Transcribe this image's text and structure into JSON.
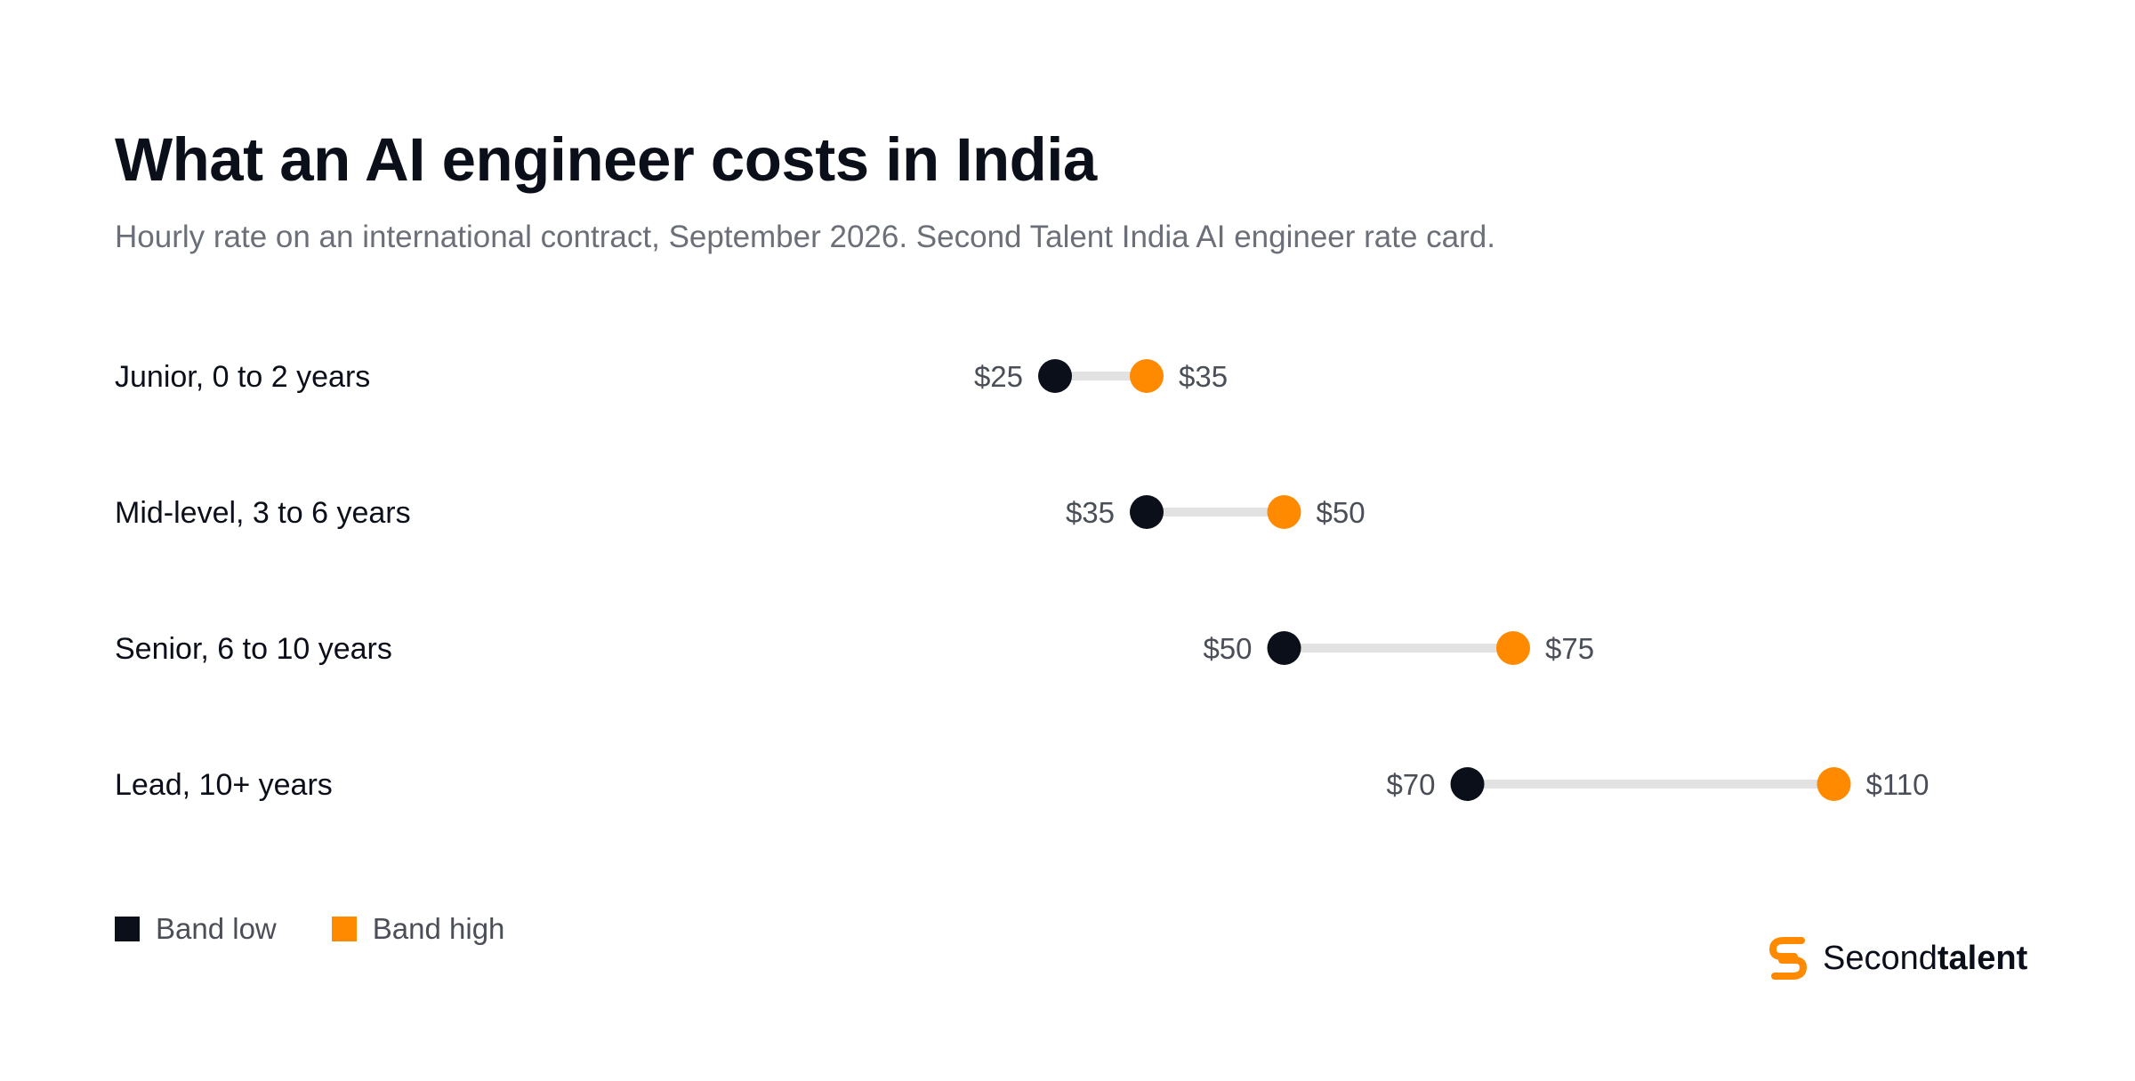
{
  "title": "What an AI engineer costs in India",
  "subtitle": "Hourly rate on an international contract, September 2026. Second Talent India AI engineer rate card.",
  "colors": {
    "low": "#0b0f1a",
    "high": "#ff8a00",
    "connector": "#e2e2e2"
  },
  "chart_data": {
    "type": "dumbbell",
    "title": "What an AI engineer costs in India",
    "subtitle": "Hourly rate on an international contract, September 2026. Second Talent India AI engineer rate card.",
    "unit": "$",
    "categories": [
      "Junior, 0 to 2 years",
      "Mid-level, 3 to 6 years",
      "Senior, 6 to 10 years",
      "Lead, 10+ years"
    ],
    "series": [
      {
        "name": "Band low",
        "values": [
          25,
          35,
          50,
          70
        ]
      },
      {
        "name": "Band high",
        "values": [
          35,
          50,
          75,
          110
        ]
      }
    ],
    "data_labels": {
      "low": [
        "$25",
        "$35",
        "$50",
        "$70"
      ],
      "high": [
        "$35",
        "$50",
        "$75",
        "$110"
      ]
    },
    "grid": false,
    "legend": "bottom-left"
  },
  "legend": {
    "low_label": "Band low",
    "high_label": "Band high"
  },
  "brand": {
    "name_light": "Second",
    "name_bold": "talent",
    "icon": "second-talent-logo-icon"
  }
}
